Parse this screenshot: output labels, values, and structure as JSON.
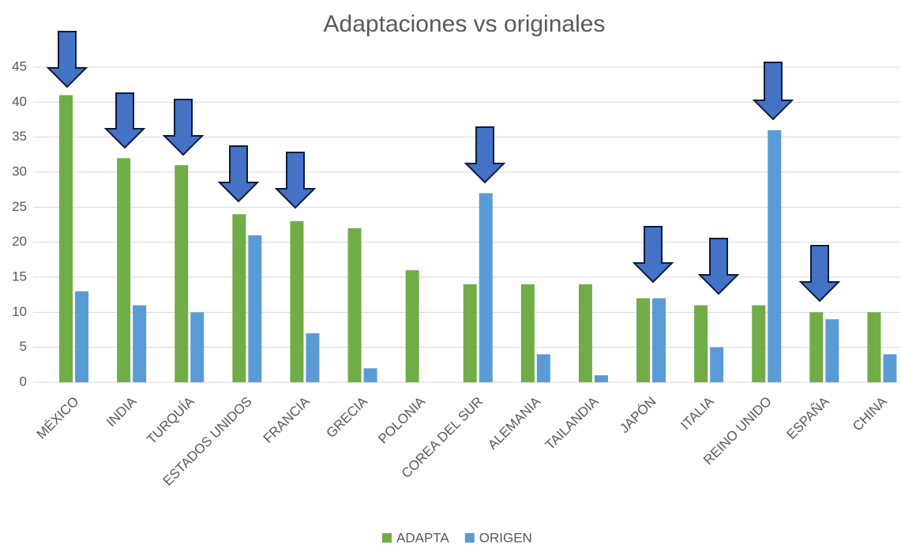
{
  "chart_data": {
    "type": "bar",
    "title": "Adaptaciones vs originales",
    "categories": [
      "MÉXICO",
      "INDIA",
      "TURQUÍA",
      "ESTADOS UNIDOS",
      "FRANCIA",
      "GRECIA",
      "POLONIA",
      "COREA DEL SUR",
      "ALEMANIA",
      "TAILANDIA",
      "JAPÓN",
      "ITALIA",
      "REINO UNIDO",
      "ESPAÑA",
      "CHINA"
    ],
    "series": [
      {
        "name": "ADAPTA",
        "color": "#70ad47",
        "values": [
          41,
          32,
          31,
          24,
          23,
          22,
          16,
          14,
          14,
          14,
          12,
          11,
          11,
          10,
          10
        ]
      },
      {
        "name": "ORIGEN",
        "color": "#5b9bd5",
        "values": [
          13,
          11,
          10,
          21,
          7,
          2,
          0,
          27,
          4,
          1,
          12,
          5,
          36,
          9,
          4
        ]
      }
    ],
    "ylim": [
      0,
      45
    ],
    "yticks": [
      0,
      5,
      10,
      15,
      20,
      25,
      30,
      35,
      40,
      45
    ],
    "grid": true,
    "legend": "bottom"
  }
}
